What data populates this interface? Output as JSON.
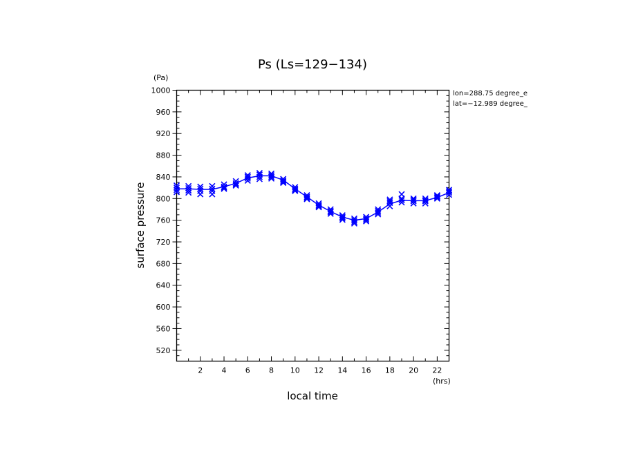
{
  "chart_data": {
    "type": "scatter",
    "title": "Ps (Ls=129−134)",
    "xlabel": "local time",
    "ylabel": "surface pressure",
    "x_unit": "(hrs)",
    "y_unit": "(Pa)",
    "xlim": [
      0,
      23
    ],
    "ylim": [
      500,
      1000
    ],
    "x_ticks": [
      2,
      4,
      6,
      8,
      10,
      12,
      14,
      16,
      18,
      20,
      22
    ],
    "y_ticks": [
      520,
      560,
      600,
      640,
      680,
      720,
      760,
      800,
      840,
      880,
      920,
      960,
      1000
    ],
    "annotations": [
      "lon=288.75 degree_e",
      "lat=−12.989 degree_"
    ],
    "line_color": "#0000ff",
    "marker_color": "#0000ff",
    "mean_line": {
      "x": [
        0,
        1,
        2,
        3,
        4,
        5,
        6,
        7,
        8,
        9,
        10,
        11,
        12,
        13,
        14,
        15,
        16,
        17,
        18,
        19,
        20,
        21,
        22,
        23
      ],
      "y": [
        818,
        818,
        817,
        817,
        822,
        828,
        838,
        842,
        842,
        834,
        818,
        803,
        788,
        776,
        766,
        760,
        763,
        775,
        790,
        797,
        796,
        796,
        802,
        811
      ]
    },
    "scatter": {
      "x": [
        0,
        0,
        0,
        0,
        1,
        1,
        1,
        1,
        2,
        2,
        2,
        2,
        3,
        3,
        3,
        3,
        4,
        4,
        4,
        4,
        5,
        5,
        5,
        5,
        6,
        6,
        6,
        6,
        7,
        7,
        7,
        7,
        8,
        8,
        8,
        8,
        9,
        9,
        9,
        9,
        10,
        10,
        10,
        10,
        11,
        11,
        11,
        11,
        12,
        12,
        12,
        12,
        13,
        13,
        13,
        13,
        14,
        14,
        14,
        14,
        15,
        15,
        15,
        15,
        16,
        16,
        16,
        16,
        17,
        17,
        17,
        17,
        18,
        18,
        18,
        18,
        19,
        19,
        19,
        19,
        20,
        20,
        20,
        20,
        21,
        21,
        21,
        21,
        22,
        22,
        22,
        22,
        23,
        23,
        23,
        23
      ],
      "y": [
        824,
        820,
        816,
        812,
        823,
        819,
        815,
        811,
        822,
        818,
        814,
        808,
        823,
        818,
        814,
        808,
        826,
        822,
        820,
        818,
        832,
        828,
        826,
        824,
        843,
        840,
        837,
        833,
        847,
        844,
        840,
        836,
        846,
        843,
        840,
        837,
        836,
        833,
        831,
        829,
        821,
        818,
        816,
        814,
        806,
        803,
        801,
        799,
        791,
        788,
        786,
        784,
        780,
        777,
        775,
        772,
        769,
        766,
        764,
        761,
        763,
        760,
        757,
        754,
        766,
        763,
        761,
        758,
        780,
        777,
        774,
        771,
        798,
        795,
        792,
        786,
        808,
        800,
        797,
        793,
        800,
        798,
        795,
        791,
        800,
        797,
        795,
        791,
        806,
        804,
        802,
        800,
        816,
        813,
        811,
        807
      ]
    }
  }
}
